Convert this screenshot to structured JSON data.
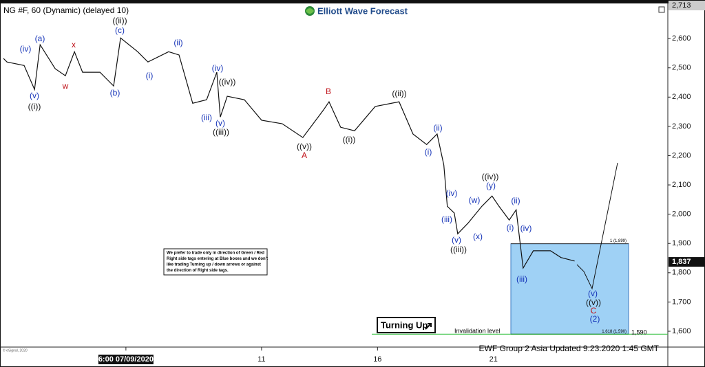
{
  "chart_data": {
    "type": "line",
    "title": "NG #F, 60 (Dynamic) (delayed 10)",
    "brand": "Elliott Wave Forecast",
    "footer": "EWF Group 2 Asia Updated 9.23.2020 1:45 GMT",
    "copyright": "© eSignal, 2020",
    "note": [
      "We prefer to trade only in direction of Green / Red",
      "Right side tags entering at Blue boxes and we don't",
      "like trading Turning up / down arrows or against",
      "the direction of Right side tags."
    ],
    "button": "Turning Up",
    "invalidation": "Invalidation level",
    "color": "#111111",
    "x": [
      -0.13,
      0.02,
      0.76,
      1.21,
      1.45,
      2.1,
      2.54,
      2.93,
      3.28,
      4.03,
      4.62,
      4.92,
      5.66,
      6.1,
      6.99,
      7.44,
      8.03,
      8.63,
      9.07,
      9.22,
      9.52,
      10.26,
      11,
      11.89,
      12.78,
      13.67,
      13.91,
      14.41,
      15.01,
      15.9,
      16.93,
      17.53,
      18.12,
      18.57,
      18.86,
      19.01,
      19.31,
      19.46,
      19.9,
      20.5,
      20.94,
      21.24,
      21.68,
      21.98,
      22.28,
      22.72,
      23.46,
      23.91,
      24.5
    ],
    "values": [
      2532,
      2520,
      2508,
      2426,
      2579,
      2497,
      2473,
      2555,
      2485,
      2485,
      2438,
      2602,
      2555,
      2520,
      2555,
      2544,
      2379,
      2391,
      2485,
      2332,
      2403,
      2391,
      2321,
      2309,
      2262,
      2356,
      2384,
      2297,
      2285,
      2368,
      2384,
      2274,
      2238,
      2274,
      2168,
      2027,
      2004,
      1933,
      1969,
      2027,
      2062,
      2027,
      1980,
      2015,
      1816,
      1875,
      1875,
      1852,
      1840
    ],
    "xlim": [
      -0.28,
      28.52
    ],
    "xticks": [
      {
        "value": 5.15,
        "label": "6:00 07/09/2020"
      },
      11,
      16,
      21
    ],
    "ylim": [
      1546,
      2713
    ],
    "yticks": [
      {
        "value": 1600,
        "label": "1,600"
      },
      {
        "value": 1700,
        "label": "1,700"
      },
      {
        "value": 1800,
        "label": "1,800"
      },
      {
        "value": 1900,
        "label": "1,900"
      },
      {
        "value": 2000,
        "label": "2,000"
      },
      {
        "value": 2100,
        "label": "2,100"
      },
      {
        "value": 2200,
        "label": "2,200"
      },
      {
        "value": 2300,
        "label": "2,300"
      },
      {
        "value": 2400,
        "label": "2,400"
      },
      {
        "value": 2500,
        "label": "2,500"
      },
      {
        "value": 2600,
        "label": "2,600"
      }
    ],
    "price_tags": [
      {
        "value": 2713,
        "label": "2,713"
      },
      {
        "value": 1837,
        "label": "1,837"
      }
    ],
    "levels": [
      {
        "value": 1899,
        "label": "1 (1,899)"
      },
      {
        "value": 1590,
        "label": "1.618 (1,590)"
      }
    ],
    "invalidation_price": {
      "value": 1590,
      "label": "1,590"
    },
    "box_color": "#9fd1f5",
    "annotations": [
      {
        "text": "(iv)",
        "color": "#1533b8"
      },
      {
        "text": "(a)",
        "color": "#1533b8"
      },
      {
        "text": "x",
        "color": "#c0141b"
      },
      {
        "text": "((ii))",
        "color": "#111111"
      },
      {
        "text": "(c)",
        "color": "#1533b8"
      },
      {
        "text": "(ii)",
        "color": "#1533b8"
      },
      {
        "text": "(v)",
        "color": "#1533b8"
      },
      {
        "text": "((i))",
        "color": "#111111"
      },
      {
        "text": "w",
        "color": "#c0141b"
      },
      {
        "text": "(b)",
        "color": "#1533b8"
      },
      {
        "text": "(i)",
        "color": "#1533b8"
      },
      {
        "text": "(iv)",
        "color": "#1533b8"
      },
      {
        "text": "((iv))",
        "color": "#111111"
      },
      {
        "text": "(iii)",
        "color": "#1533b8"
      },
      {
        "text": "(v)",
        "color": "#1533b8"
      },
      {
        "text": "((iii))",
        "color": "#111111"
      },
      {
        "text": "B",
        "color": "#c0141b"
      },
      {
        "text": "((ii))",
        "color": "#111111"
      },
      {
        "text": "((i))",
        "color": "#111111"
      },
      {
        "text": "((v))",
        "color": "#111111"
      },
      {
        "text": "A",
        "color": "#c0141b"
      },
      {
        "text": "(ii)",
        "color": "#1533b8"
      },
      {
        "text": "(i)",
        "color": "#1533b8"
      },
      {
        "text": "((iv))",
        "color": "#111111"
      },
      {
        "text": "(y)",
        "color": "#1533b8"
      },
      {
        "text": "(iv)",
        "color": "#1533b8"
      },
      {
        "text": "(w)",
        "color": "#1533b8"
      },
      {
        "text": "(ii)",
        "color": "#1533b8"
      },
      {
        "text": "(iii)",
        "color": "#1533b8"
      },
      {
        "text": "(i)",
        "color": "#1533b8"
      },
      {
        "text": "(iv)",
        "color": "#1533b8"
      },
      {
        "text": "(x)",
        "color": "#1533b8"
      },
      {
        "text": "(v)",
        "color": "#1533b8"
      },
      {
        "text": "((iii))",
        "color": "#111111"
      },
      {
        "text": "(iii)",
        "color": "#1533b8"
      },
      {
        "text": "(v)",
        "color": "#1533b8"
      },
      {
        "text": "((v))",
        "color": "#111111"
      },
      {
        "text": "C",
        "color": "#c0141b"
      },
      {
        "text": "(2)",
        "color": "#1533b8"
      }
    ]
  }
}
